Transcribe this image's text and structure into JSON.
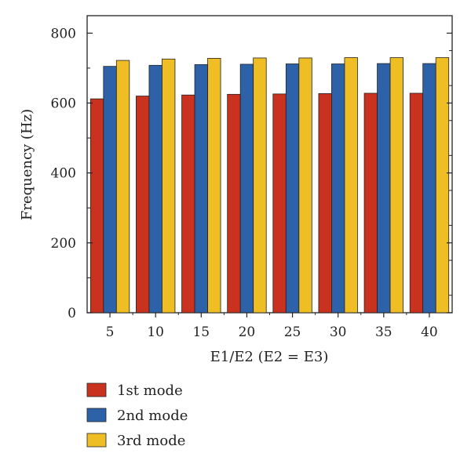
{
  "chart_data": {
    "type": "bar",
    "title": "",
    "xlabel": "E1/E2 (E2 = E3)",
    "ylabel": "Frequency (Hz)",
    "categories": [
      "5",
      "10",
      "15",
      "20",
      "25",
      "30",
      "35",
      "40"
    ],
    "ylim": [
      0,
      850
    ],
    "yticks": [
      0,
      200,
      400,
      600,
      800
    ],
    "grid": false,
    "legend_position": "bottom",
    "series": [
      {
        "name": "1st mode",
        "color": "#c8321e",
        "values": [
          612,
          620,
          623,
          625,
          626,
          627,
          628,
          628
        ]
      },
      {
        "name": "2nd mode",
        "color": "#2e62a8",
        "values": [
          705,
          708,
          710,
          711,
          712,
          712,
          713,
          713
        ]
      },
      {
        "name": "3rd mode",
        "color": "#efbe24",
        "values": [
          722,
          726,
          728,
          729,
          729,
          730,
          730,
          730
        ]
      }
    ]
  }
}
